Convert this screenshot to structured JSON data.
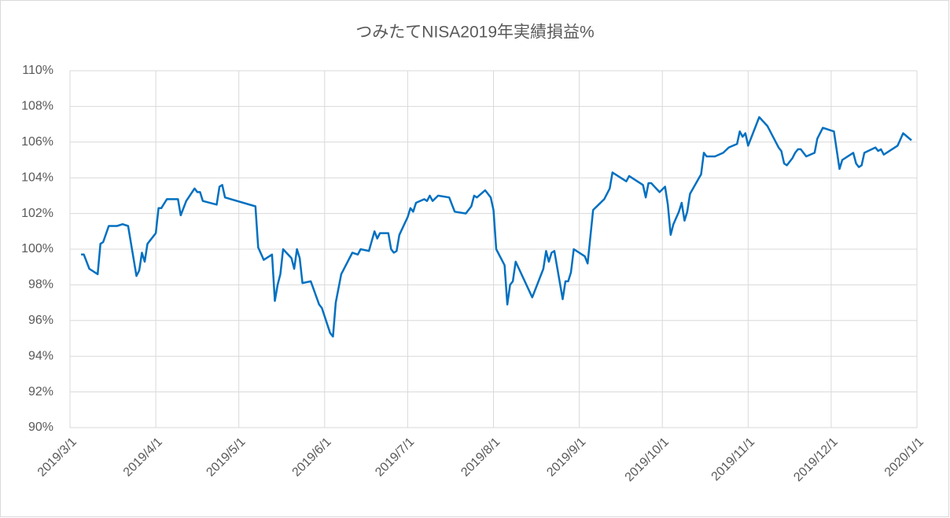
{
  "chart_data": {
    "type": "line",
    "title": "つみたてNISA2019年実績損益%",
    "x": [
      "2019/3/5",
      "2019/3/6",
      "2019/3/8",
      "2019/3/11",
      "2019/3/12",
      "2019/3/13",
      "2019/3/15",
      "2019/3/18",
      "2019/3/20",
      "2019/3/22",
      "2019/3/25",
      "2019/3/26",
      "2019/3/27",
      "2019/3/28",
      "2019/3/29",
      "2019/4/1",
      "2019/4/2",
      "2019/4/3",
      "2019/4/5",
      "2019/4/9",
      "2019/4/10",
      "2019/4/12",
      "2019/4/15",
      "2019/4/16",
      "2019/4/17",
      "2019/4/18",
      "2019/4/23",
      "2019/4/24",
      "2019/4/25",
      "2019/4/26",
      "2019/5/7",
      "2019/5/8",
      "2019/5/10",
      "2019/5/13",
      "2019/5/14",
      "2019/5/15",
      "2019/5/16",
      "2019/5/17",
      "2019/5/20",
      "2019/5/21",
      "2019/5/22",
      "2019/5/23",
      "2019/5/24",
      "2019/5/27",
      "2019/5/30",
      "2019/5/31",
      "2019/6/3",
      "2019/6/4",
      "2019/6/5",
      "2019/6/7",
      "2019/6/11",
      "2019/6/13",
      "2019/6/14",
      "2019/6/17",
      "2019/6/19",
      "2019/6/20",
      "2019/6/21",
      "2019/6/24",
      "2019/6/25",
      "2019/6/26",
      "2019/6/27",
      "2019/6/28",
      "2019/7/1",
      "2019/7/2",
      "2019/7/3",
      "2019/7/4",
      "2019/7/7",
      "2019/7/8",
      "2019/7/9",
      "2019/7/10",
      "2019/7/12",
      "2019/7/16",
      "2019/7/18",
      "2019/7/22",
      "2019/7/24",
      "2019/7/25",
      "2019/7/26",
      "2019/7/29",
      "2019/7/30",
      "2019/7/31",
      "2019/8/1",
      "2019/8/2",
      "2019/8/5",
      "2019/8/6",
      "2019/8/7",
      "2019/8/8",
      "2019/8/9",
      "2019/8/15",
      "2019/8/19",
      "2019/8/20",
      "2019/8/21",
      "2019/8/22",
      "2019/8/23",
      "2019/8/26",
      "2019/8/27",
      "2019/8/28",
      "2019/8/29",
      "2019/8/30",
      "2019/9/3",
      "2019/9/4",
      "2019/9/6",
      "2019/9/8",
      "2019/9/10",
      "2019/9/12",
      "2019/9/13",
      "2019/9/18",
      "2019/9/19",
      "2019/9/24",
      "2019/9/25",
      "2019/9/26",
      "2019/9/27",
      "2019/9/30",
      "2019/10/2",
      "2019/10/3",
      "2019/10/4",
      "2019/10/5",
      "2019/10/7",
      "2019/10/8",
      "2019/10/9",
      "2019/10/10",
      "2019/10/11",
      "2019/10/15",
      "2019/10/16",
      "2019/10/17",
      "2019/10/18",
      "2019/10/20",
      "2019/10/23",
      "2019/10/25",
      "2019/10/28",
      "2019/10/29",
      "2019/10/30",
      "2019/10/31",
      "2019/11/1",
      "2019/11/5",
      "2019/11/8",
      "2019/11/11",
      "2019/11/12",
      "2019/11/13",
      "2019/11/14",
      "2019/11/15",
      "2019/11/17",
      "2019/11/18",
      "2019/11/19",
      "2019/11/20",
      "2019/11/22",
      "2019/11/25",
      "2019/11/26",
      "2019/11/28",
      "2019/12/2",
      "2019/12/4",
      "2019/12/5",
      "2019/12/9",
      "2019/12/10",
      "2019/12/11",
      "2019/12/12",
      "2019/12/13",
      "2019/12/17",
      "2019/12/18",
      "2019/12/19",
      "2019/12/20",
      "2019/12/25",
      "2019/12/27",
      "2019/12/30"
    ],
    "series": [
      {
        "color": "#0070c0",
        "values": [
          99.7,
          99.7,
          98.9,
          98.6,
          100.3,
          100.4,
          101.3,
          101.3,
          101.4,
          101.3,
          98.5,
          98.8,
          99.8,
          99.3,
          100.3,
          100.9,
          102.3,
          102.3,
          102.8,
          102.8,
          101.9,
          102.7,
          103.4,
          103.2,
          103.2,
          102.7,
          102.5,
          103.5,
          103.6,
          102.9,
          102.4,
          100.1,
          99.4,
          99.7,
          97.1,
          98.0,
          98.6,
          100.0,
          99.5,
          98.9,
          100.0,
          99.5,
          98.1,
          98.2,
          96.9,
          96.7,
          95.3,
          95.1,
          97.0,
          98.6,
          99.8,
          99.7,
          100.0,
          99.9,
          101.0,
          100.6,
          100.9,
          100.9,
          100.0,
          99.8,
          99.9,
          100.8,
          101.8,
          102.3,
          102.1,
          102.6,
          102.8,
          102.7,
          103.0,
          102.7,
          103.0,
          102.9,
          102.1,
          102.0,
          102.4,
          103.0,
          102.9,
          103.3,
          103.1,
          102.9,
          102.2,
          100.0,
          99.1,
          96.9,
          98.0,
          98.2,
          99.3,
          97.3,
          98.9,
          99.9,
          99.3,
          99.8,
          99.9,
          97.2,
          98.2,
          98.2,
          98.7,
          100.0,
          99.6,
          99.2,
          102.2,
          102.5,
          102.8,
          103.4,
          104.3,
          103.8,
          104.1,
          103.6,
          102.9,
          103.7,
          103.7,
          103.2,
          103.5,
          102.5,
          100.8,
          101.4,
          102.1,
          102.6,
          101.6,
          102.1,
          103.1,
          104.2,
          105.4,
          105.2,
          105.2,
          105.2,
          105.4,
          105.7,
          105.9,
          106.6,
          106.3,
          106.5,
          105.8,
          107.4,
          106.9,
          106.0,
          105.7,
          105.5,
          104.8,
          104.7,
          105.1,
          105.4,
          105.6,
          105.6,
          105.2,
          105.4,
          106.2,
          106.8,
          106.6,
          104.5,
          105.0,
          105.4,
          104.8,
          104.6,
          104.7,
          105.4,
          105.7,
          105.5,
          105.6,
          105.3,
          105.8,
          106.5,
          106.1
        ]
      }
    ],
    "xlim": [
      "2019/3/1",
      "2020/1/1"
    ],
    "xticks": [
      "2019/3/1",
      "2019/4/1",
      "2019/5/1",
      "2019/6/1",
      "2019/7/1",
      "2019/8/1",
      "2019/9/1",
      "2019/10/1",
      "2019/11/1",
      "2019/12/1",
      "2020/1/1"
    ],
    "ylim": [
      90,
      110
    ],
    "yticks": [
      {
        "value": 90,
        "label": "90%"
      },
      {
        "value": 92,
        "label": "92%"
      },
      {
        "value": 94,
        "label": "94%"
      },
      {
        "value": 96,
        "label": "96%"
      },
      {
        "value": 98,
        "label": "98%"
      },
      {
        "value": 100,
        "label": "100%"
      },
      {
        "value": 102,
        "label": "102%"
      },
      {
        "value": 104,
        "label": "104%"
      },
      {
        "value": 106,
        "label": "106%"
      },
      {
        "value": 108,
        "label": "108%"
      },
      {
        "value": 110,
        "label": "110%"
      }
    ],
    "grid": true
  }
}
